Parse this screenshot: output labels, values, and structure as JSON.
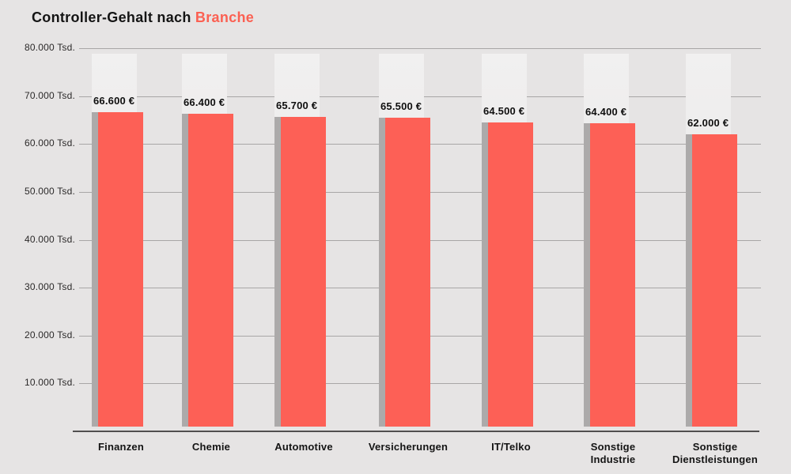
{
  "title": {
    "prefix": "Controller-Gehalt nach ",
    "highlight": "Branche"
  },
  "colors": {
    "background": "#e6e4e4",
    "bar": "#fd6056",
    "accent": "#fb6052",
    "bar_shadow": "#acaaaa",
    "track_top": "#f1f0f0",
    "track_bottom": "#e3e1e1",
    "gridline": "#a8a6a6",
    "axis_line": "#514f4f"
  },
  "chart_data": {
    "type": "bar",
    "title": "Controller-Gehalt nach Branche",
    "categories": [
      "Finanzen",
      "Chemie",
      "Automotive",
      "Versicherungen",
      "IT/Telko",
      "Sonstige Industrie",
      "Sonstige Dienstleistungen"
    ],
    "category_label_lines": [
      [
        "Finanzen"
      ],
      [
        "Chemie"
      ],
      [
        "Automotive"
      ],
      [
        "Versicherungen"
      ],
      [
        "IT/Telko"
      ],
      [
        "Sonstige",
        "Industrie"
      ],
      [
        "Sonstige",
        "Dienstleistungen"
      ]
    ],
    "values": [
      66600,
      66400,
      65700,
      65500,
      64500,
      64400,
      62000
    ],
    "value_labels": [
      "66.600 €",
      "66.400 €",
      "65.700 €",
      "65.500 €",
      "64.500 €",
      "64.400 €",
      "62.000 €"
    ],
    "unit": "€",
    "ylim": [
      0,
      80000
    ],
    "yticks": [
      {
        "value": 80000,
        "label": "80.000 Tsd."
      },
      {
        "value": 70000,
        "label": "70.000 Tsd."
      },
      {
        "value": 60000,
        "label": "60.000 Tsd."
      },
      {
        "value": 50000,
        "label": "50.000 Tsd."
      },
      {
        "value": 40000,
        "label": "40.000 Tsd."
      },
      {
        "value": 30000,
        "label": "30.000 Tsd."
      },
      {
        "value": 20000,
        "label": "20.000 Tsd."
      },
      {
        "value": 10000,
        "label": "10.000 Tsd."
      }
    ],
    "grid": "horizontal",
    "legend": "none"
  }
}
